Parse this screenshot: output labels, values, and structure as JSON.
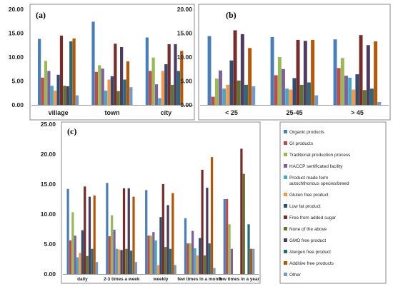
{
  "colors": [
    "#4a7ebb",
    "#be4b48",
    "#98b954",
    "#7d60a0",
    "#46aac5",
    "#f79646",
    "#2c4d75",
    "#772c2a",
    "#5f7530",
    "#4d3b62",
    "#276a7c",
    "#b65708",
    "#729aca"
  ],
  "chart_data": [
    {
      "panel": "(a)",
      "type": "bar",
      "categories": [
        "village",
        "town",
        "city"
      ],
      "ylim": [
        0,
        20
      ],
      "yticks": [
        "0.00",
        "5.00",
        "10.00",
        "15.00",
        "20.00"
      ],
      "series": [
        {
          "values": [
            13.8,
            17.4,
            14.1
          ]
        },
        {
          "values": [
            5.7,
            6.9,
            7.1
          ]
        },
        {
          "values": [
            9.2,
            8.3,
            9.9
          ]
        },
        {
          "values": [
            7.1,
            7.6,
            4.3
          ]
        },
        {
          "values": [
            4.0,
            3.0,
            1.4
          ]
        },
        {
          "values": [
            3.0,
            5.3,
            7.1
          ]
        },
        {
          "values": [
            6.3,
            6.0,
            8.5
          ]
        },
        {
          "values": [
            14.5,
            12.8,
            12.7
          ]
        },
        {
          "values": [
            4.0,
            2.9,
            4.2
          ]
        },
        {
          "values": [
            3.9,
            12.1,
            12.7
          ]
        },
        {
          "values": [
            13.3,
            5.3,
            7.1
          ]
        },
        {
          "values": [
            13.9,
            9.1,
            11.3
          ]
        },
        {
          "values": [
            2.0,
            3.7,
            0.0
          ]
        }
      ]
    },
    {
      "panel": "(b)",
      "type": "bar",
      "categories": [
        "< 25",
        "25-45",
        "> 45"
      ],
      "ylim": [
        0,
        20
      ],
      "yticks": [
        "0.00",
        "5.00",
        "10.00",
        "15.00",
        "20.00"
      ],
      "series": [
        {
          "values": [
            14.4,
            14.2,
            13.7
          ]
        },
        {
          "values": [
            1.7,
            6.2,
            7.7
          ]
        },
        {
          "values": [
            5.5,
            10.0,
            9.8
          ]
        },
        {
          "values": [
            7.2,
            7.5,
            6.1
          ]
        },
        {
          "values": [
            3.4,
            3.4,
            5.7
          ]
        },
        {
          "values": [
            4.2,
            3.2,
            3.2
          ]
        },
        {
          "values": [
            9.3,
            5.6,
            6.4
          ]
        },
        {
          "values": [
            15.6,
            13.6,
            14.6
          ]
        },
        {
          "values": [
            5.1,
            4.2,
            3.1
          ]
        },
        {
          "values": [
            14.8,
            13.4,
            12.5
          ]
        },
        {
          "values": [
            4.2,
            4.7,
            3.4
          ]
        },
        {
          "values": [
            11.9,
            13.6,
            13.3
          ]
        },
        {
          "values": [
            3.9,
            2.0,
            0.6
          ]
        }
      ]
    },
    {
      "panel": "(c)",
      "type": "bar",
      "categories": [
        "daily",
        "2-3 times a week",
        "weekly",
        "few times in a month",
        "few times in a year"
      ],
      "ylim": [
        0,
        25
      ],
      "yticks": [
        "0.00",
        "5.00",
        "10.00",
        "15.00",
        "20.00",
        "25.00"
      ],
      "legend_position": "right",
      "series": [
        {
          "name": "Organic products",
          "values": [
            14.2,
            15.2,
            14.0,
            9.3,
            12.5
          ]
        },
        {
          "name": "GI products",
          "values": [
            5.6,
            6.3,
            6.4,
            5.1,
            12.5
          ]
        },
        {
          "name": "Traditional production process",
          "values": [
            10.3,
            9.8,
            6.4,
            5.1,
            8.3
          ]
        },
        {
          "name": "HACCP sertificated facility",
          "values": [
            6.4,
            7.4,
            7.0,
            7.2,
            4.2
          ]
        },
        {
          "name": "Product made form autochthonous species/breed",
          "values": [
            2.8,
            4.2,
            5.6,
            4.3,
            0.0
          ]
        },
        {
          "name": "Gluten free product",
          "values": [
            3.5,
            4.1,
            1.5,
            3.1,
            0.0
          ]
        },
        {
          "name": "Low fat product",
          "values": [
            7.3,
            4.0,
            9.5,
            6.0,
            0.0
          ]
        },
        {
          "name": "Free from added sugar",
          "values": [
            14.6,
            14.3,
            15.0,
            17.4,
            20.9
          ]
        },
        {
          "name": "None of the above",
          "values": [
            3.0,
            4.2,
            4.5,
            3.1,
            16.7
          ]
        },
        {
          "name": "GMO free product",
          "values": [
            12.9,
            14.3,
            11.5,
            14.4,
            0.0
          ]
        },
        {
          "name": "Alergen free product",
          "values": [
            4.2,
            3.9,
            4.2,
            5.1,
            8.3
          ]
        },
        {
          "name": "Additive free products",
          "values": [
            13.1,
            12.9,
            13.5,
            19.5,
            4.2
          ]
        },
        {
          "name": "Other",
          "values": [
            2.0,
            2.0,
            1.5,
            1.0,
            4.2
          ]
        }
      ]
    }
  ]
}
